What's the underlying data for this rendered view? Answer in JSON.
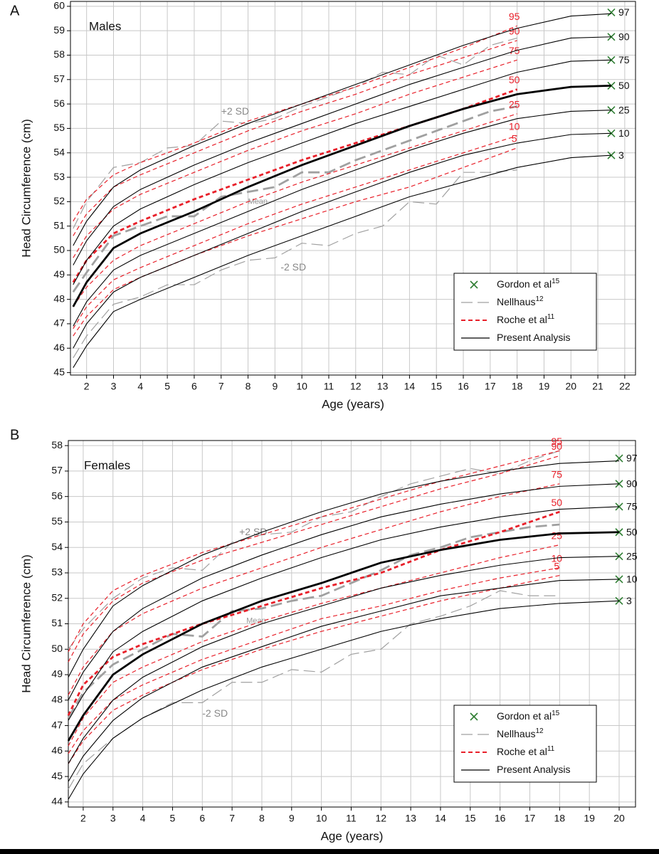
{
  "chart_data": [
    {
      "type": "line",
      "panel_label": "A",
      "annotation": "Males",
      "xlabel": "Age (years)",
      "ylabel": "Head Circumference (cm)",
      "xlim": [
        1.4,
        22.4
      ],
      "ylim": [
        44.9,
        60.2
      ],
      "xticks": [
        2,
        3,
        4,
        5,
        6,
        7,
        8,
        9,
        10,
        11,
        12,
        13,
        14,
        15,
        16,
        17,
        18,
        19,
        20,
        21,
        22
      ],
      "yticks": [
        45,
        46,
        47,
        48,
        49,
        50,
        51,
        52,
        53,
        54,
        55,
        56,
        57,
        58,
        59,
        60
      ],
      "grid": true,
      "legend": "lower right",
      "series": [
        {
          "name": "Gordon et al",
          "ref": "15",
          "color": "#2e7d32",
          "style": "marker",
          "x": [
            21.5,
            21.5,
            21.5,
            21.5,
            21.5,
            21.5,
            21.5
          ],
          "values": [
            59.75,
            58.75,
            57.8,
            56.75,
            55.75,
            54.8,
            53.9
          ],
          "labels": [
            "97",
            "90",
            "75",
            "50",
            "25",
            "10",
            "3"
          ]
        },
        {
          "name": "Nellhaus",
          "ref": "12",
          "color": "#a0a0a0",
          "style": "long-dash",
          "x": [
            1.5,
            2,
            3,
            4,
            5,
            6,
            7,
            8,
            9,
            10,
            11,
            12,
            13,
            14,
            15,
            16,
            17,
            18
          ],
          "curves": [
            {
              "label": "+2 SD",
              "values": [
                50.9,
                52.0,
                53.4,
                53.6,
                54.2,
                54.3,
                55.3,
                55.2,
                55.4,
                55.9,
                56.3,
                56.7,
                57.3,
                57.2,
                58.0,
                57.6,
                58.4,
                58.7
              ]
            },
            {
              "label": "Mean",
              "bold": true,
              "values": [
                48.3,
                49.1,
                50.6,
                51.0,
                51.4,
                51.4,
                52.2,
                52.4,
                52.6,
                53.2,
                53.2,
                53.7,
                54.1,
                54.5,
                54.9,
                55.3,
                55.7,
                55.9
              ]
            },
            {
              "label": "-2 SD",
              "values": [
                45.6,
                46.5,
                47.8,
                48.1,
                48.6,
                48.6,
                49.2,
                49.6,
                49.7,
                50.3,
                50.2,
                50.7,
                51.0,
                52.0,
                51.9,
                53.2,
                53.2,
                53.3
              ]
            }
          ]
        },
        {
          "name": "Roche et al",
          "ref": "11",
          "color": "#e8202a",
          "style": "dash",
          "x": [
            1.5,
            2,
            3,
            4,
            6,
            8,
            10,
            12,
            14,
            16,
            18
          ],
          "curves": [
            {
              "label": "95",
              "values": [
                51.2,
                52.1,
                53.1,
                53.6,
                54.4,
                55.3,
                56.0,
                56.7,
                57.5,
                58.3,
                59.2
              ]
            },
            {
              "label": "90",
              "values": [
                50.6,
                51.5,
                52.6,
                53.1,
                54.0,
                54.9,
                55.7,
                56.4,
                57.2,
                57.9,
                58.6
              ]
            },
            {
              "label": "75",
              "values": [
                49.7,
                50.6,
                51.7,
                52.3,
                53.2,
                54.1,
                54.9,
                55.6,
                56.4,
                57.1,
                57.8
              ]
            },
            {
              "label": "50",
              "bold": true,
              "values": [
                48.7,
                49.6,
                50.7,
                51.2,
                52.1,
                52.9,
                53.7,
                54.4,
                55.1,
                55.8,
                56.6
              ]
            },
            {
              "label": "25",
              "values": [
                47.7,
                48.5,
                49.6,
                50.2,
                51.1,
                52.0,
                52.8,
                53.5,
                54.2,
                54.9,
                55.6
              ]
            },
            {
              "label": "10",
              "values": [
                46.8,
                47.7,
                48.8,
                49.3,
                50.2,
                51.1,
                51.9,
                52.6,
                53.3,
                54.0,
                54.7
              ]
            },
            {
              "label": "5",
              "values": [
                46.5,
                47.3,
                48.4,
                48.9,
                49.8,
                50.6,
                51.3,
                52.0,
                52.6,
                53.4,
                54.2
              ]
            }
          ]
        },
        {
          "name": "Present Analysis",
          "color": "#000000",
          "style": "solid",
          "x": [
            1.5,
            2,
            3,
            4,
            6,
            8,
            10,
            12,
            14,
            16,
            18,
            20,
            21.5
          ],
          "curves": [
            {
              "values": [
                50.2,
                51.2,
                52.6,
                53.3,
                54.3,
                55.2,
                56.0,
                56.8,
                57.6,
                58.4,
                59.1,
                59.6,
                59.7
              ]
            },
            {
              "values": [
                49.4,
                50.4,
                51.8,
                52.5,
                53.5,
                54.4,
                55.2,
                56.0,
                56.8,
                57.5,
                58.2,
                58.7,
                58.75
              ]
            },
            {
              "values": [
                48.6,
                49.6,
                51.0,
                51.7,
                52.7,
                53.6,
                54.4,
                55.2,
                55.9,
                56.6,
                57.3,
                57.75,
                57.8
              ]
            },
            {
              "bold": true,
              "values": [
                47.7,
                48.7,
                50.1,
                50.7,
                51.6,
                52.6,
                53.5,
                54.3,
                55.1,
                55.8,
                56.4,
                56.7,
                56.75
              ]
            },
            {
              "values": [
                46.9,
                47.9,
                49.2,
                49.8,
                50.7,
                51.6,
                52.5,
                53.3,
                54.1,
                54.8,
                55.4,
                55.7,
                55.75
              ]
            },
            {
              "values": [
                46.0,
                47.0,
                48.3,
                48.9,
                49.8,
                50.7,
                51.6,
                52.4,
                53.2,
                53.9,
                54.4,
                54.75,
                54.8
              ]
            },
            {
              "values": [
                45.2,
                46.1,
                47.5,
                48.0,
                48.9,
                49.8,
                50.6,
                51.4,
                52.2,
                52.8,
                53.4,
                53.8,
                53.9
              ]
            }
          ]
        }
      ]
    },
    {
      "type": "line",
      "panel_label": "B",
      "annotation": "Females",
      "xlabel": "Age (years)",
      "ylabel": "Head Circumference (cm)",
      "xlim": [
        1.5,
        20.55
      ],
      "ylim": [
        43.8,
        58.2
      ],
      "xticks": [
        2,
        3,
        4,
        5,
        6,
        7,
        8,
        9,
        10,
        11,
        12,
        13,
        14,
        15,
        16,
        17,
        18,
        19,
        20
      ],
      "yticks": [
        44,
        45,
        46,
        47,
        48,
        49,
        50,
        51,
        52,
        53,
        54,
        55,
        56,
        57,
        58
      ],
      "grid": true,
      "legend": "lower right",
      "series": [
        {
          "name": "Gordon et al",
          "ref": "15",
          "color": "#2e7d32",
          "style": "marker",
          "x": [
            20,
            20,
            20,
            20,
            20,
            20,
            20
          ],
          "values": [
            57.5,
            56.5,
            55.6,
            54.6,
            53.65,
            52.75,
            51.9
          ],
          "labels": [
            "97",
            "90",
            "75",
            "50",
            "25",
            "10",
            "3"
          ]
        },
        {
          "name": "Nellhaus",
          "ref": "12",
          "color": "#a0a0a0",
          "style": "long-dash",
          "x": [
            1.5,
            2,
            3,
            4,
            5,
            6,
            7,
            8,
            9,
            10,
            11,
            12,
            13,
            14,
            15,
            16,
            17,
            18
          ],
          "curves": [
            {
              "label": "+2 SD",
              "values": [
                50.0,
                50.8,
                52.0,
                52.8,
                53.2,
                53.1,
                54.2,
                54.5,
                54.6,
                55.2,
                55.4,
                56.0,
                56.5,
                56.8,
                57.1,
                56.9,
                57.4,
                57.8
              ]
            },
            {
              "label": "Mean",
              "bold": true,
              "values": [
                47.3,
                48.3,
                49.4,
                50.0,
                50.6,
                50.5,
                51.5,
                51.6,
                51.9,
                52.1,
                52.6,
                53.1,
                53.7,
                54.0,
                54.4,
                54.6,
                54.8,
                54.9
              ]
            },
            {
              "label": "-2 SD",
              "values": [
                44.5,
                45.5,
                46.5,
                47.3,
                47.9,
                47.9,
                48.7,
                48.7,
                49.2,
                49.1,
                49.8,
                50.0,
                51.0,
                51.3,
                51.7,
                52.3,
                52.1,
                52.1
              ]
            }
          ]
        },
        {
          "name": "Roche et al",
          "ref": "11",
          "color": "#e8202a",
          "style": "dash",
          "x": [
            1.5,
            2,
            3,
            4,
            6,
            8,
            10,
            12,
            14,
            16,
            18
          ],
          "curves": [
            {
              "label": "95",
              "values": [
                49.9,
                51.0,
                52.3,
                52.9,
                53.8,
                54.5,
                55.2,
                55.9,
                56.6,
                57.2,
                57.8
              ]
            },
            {
              "label": "90",
              "values": [
                49.5,
                50.6,
                51.9,
                52.6,
                53.5,
                54.2,
                54.9,
                55.6,
                56.3,
                56.9,
                57.6
              ]
            },
            {
              "label": "75",
              "values": [
                48.2,
                49.3,
                50.7,
                51.4,
                52.4,
                53.2,
                54.0,
                54.7,
                55.4,
                56.0,
                56.5
              ]
            },
            {
              "label": "50",
              "bold": true,
              "values": [
                47.4,
                48.6,
                49.7,
                50.2,
                51.0,
                51.7,
                52.4,
                53.0,
                53.9,
                54.6,
                55.4
              ]
            },
            {
              "label": "25",
              "values": [
                46.2,
                47.3,
                48.7,
                49.3,
                50.3,
                51.1,
                51.8,
                52.4,
                53.0,
                53.6,
                54.1
              ]
            },
            {
              "label": "10",
              "values": [
                45.9,
                46.8,
                48.0,
                48.6,
                49.6,
                50.4,
                51.2,
                51.7,
                52.3,
                52.8,
                53.2
              ]
            },
            {
              "label": "5",
              "values": [
                45.5,
                46.4,
                47.6,
                48.2,
                49.2,
                50.0,
                50.7,
                51.3,
                51.9,
                52.4,
                52.9
              ]
            }
          ]
        },
        {
          "name": "Present Analysis",
          "color": "#000000",
          "style": "solid",
          "x": [
            1.5,
            2,
            3,
            4,
            6,
            8,
            10,
            12,
            14,
            16,
            18,
            20
          ],
          "curves": [
            {
              "values": [
                48.9,
                50.0,
                51.7,
                52.5,
                53.7,
                54.6,
                55.4,
                56.1,
                56.6,
                57.0,
                57.3,
                57.4
              ]
            },
            {
              "values": [
                48.0,
                49.1,
                50.7,
                51.6,
                52.8,
                53.7,
                54.5,
                55.2,
                55.7,
                56.1,
                56.4,
                56.5
              ]
            },
            {
              "values": [
                47.2,
                48.2,
                49.9,
                50.7,
                51.9,
                52.8,
                53.6,
                54.3,
                54.8,
                55.2,
                55.5,
                55.6
              ]
            },
            {
              "bold": true,
              "values": [
                46.4,
                47.4,
                49.0,
                49.8,
                51.0,
                51.9,
                52.6,
                53.4,
                53.9,
                54.3,
                54.55,
                54.6
              ]
            },
            {
              "values": [
                45.5,
                46.5,
                48.0,
                48.9,
                50.1,
                51.0,
                51.7,
                52.4,
                52.9,
                53.3,
                53.6,
                53.65
              ]
            },
            {
              "values": [
                44.8,
                45.8,
                47.2,
                48.1,
                49.3,
                50.1,
                50.9,
                51.5,
                52.1,
                52.4,
                52.7,
                52.75
              ]
            },
            {
              "values": [
                44.1,
                45.1,
                46.5,
                47.3,
                48.4,
                49.3,
                50.0,
                50.7,
                51.2,
                51.6,
                51.8,
                51.9
              ]
            }
          ]
        }
      ]
    }
  ]
}
